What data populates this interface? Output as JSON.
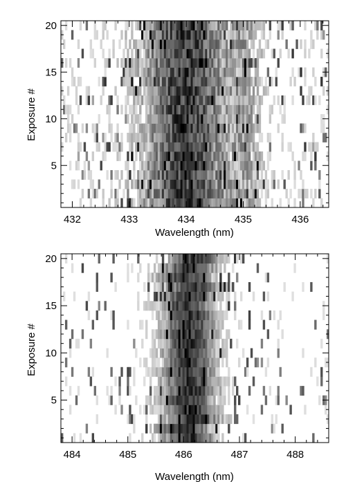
{
  "chart_data": [
    {
      "type": "heatmap",
      "title": "",
      "xlabel": "Wavelength (nm)",
      "ylabel": "Exposure #",
      "xlim": [
        431.8,
        436.5
      ],
      "ylim": [
        0.5,
        20.5
      ],
      "xticks": [
        432,
        433,
        434,
        435,
        436
      ],
      "yticks": [
        5,
        10,
        15,
        20
      ],
      "colormap": "grayscale, dark = strong absorption line",
      "exposures": 20,
      "features": [
        {
          "center": 433.98,
          "width": 0.75,
          "amplitude": 0.78
        },
        {
          "center": 435.05,
          "width": 0.28,
          "amplitude": 0.28
        }
      ],
      "noise_level": 0.45
    },
    {
      "type": "heatmap",
      "title": "",
      "xlabel": "Wavelength (nm)",
      "ylabel": "Exposure #",
      "xlim": [
        483.8,
        488.6
      ],
      "ylim": [
        0.5,
        20.5
      ],
      "xticks": [
        484,
        485,
        486,
        487,
        488
      ],
      "yticks": [
        5,
        10,
        15,
        20
      ],
      "colormap": "grayscale, dark = strong absorption line",
      "exposures": 20,
      "features": [
        {
          "center": 486.1,
          "width": 0.48,
          "amplitude": 0.82,
          "drift_per_exposure": 0.012
        }
      ],
      "noise_level": 0.3
    }
  ]
}
